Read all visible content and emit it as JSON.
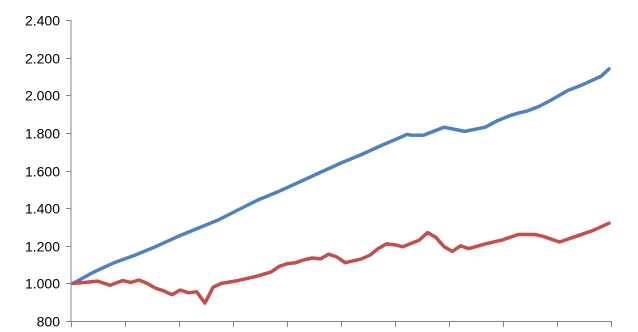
{
  "chart_data": {
    "type": "line",
    "title": "",
    "xlabel": "",
    "ylabel": "",
    "ylim": [
      800,
      2400
    ],
    "yticks": [
      800,
      1000,
      1200,
      1400,
      1600,
      1800,
      2000,
      2200,
      2400
    ],
    "ytick_labels": [
      "800",
      "1.000",
      "1.200",
      "1.400",
      "1.600",
      "1.800",
      "2.000",
      "2.200",
      "2.400"
    ],
    "x_major_tick_count": 10,
    "grid": false,
    "legend": "none",
    "series": [
      {
        "color": "#4f81bd",
        "x": [
          0,
          5,
          10,
          15,
          20,
          25,
          30,
          35,
          40,
          45,
          50,
          55,
          60,
          65,
          70,
          75,
          80,
          81,
          82,
          85,
          90,
          95,
          100,
          103,
          106,
          108,
          110,
          113,
          116,
          120,
          123,
          126,
          128,
          130
        ],
        "values": [
          1000,
          1060,
          1110,
          1150,
          1195,
          1245,
          1290,
          1335,
          1390,
          1445,
          1490,
          1540,
          1590,
          1640,
          1685,
          1735,
          1782,
          1792,
          1788,
          1787,
          1830,
          1808,
          1830,
          1865,
          1892,
          1905,
          1915,
          1940,
          1975,
          2025,
          2050,
          2080,
          2100,
          2140
        ]
      },
      {
        "color": "#c0504d",
        "x": [
          0,
          3,
          6,
          9,
          12,
          14,
          16,
          18,
          20,
          22,
          24,
          26,
          28,
          30,
          32,
          34,
          36,
          40,
          44,
          48,
          50,
          52,
          54,
          56,
          58,
          60,
          62,
          64,
          66,
          70,
          72,
          74,
          76,
          78,
          80,
          84,
          86,
          88,
          90,
          92,
          94,
          96,
          100,
          104,
          108,
          112,
          114,
          116,
          118,
          122,
          126,
          130
        ],
        "values": [
          1000,
          1005,
          1012,
          990,
          1015,
          1005,
          1018,
          1000,
          975,
          960,
          940,
          965,
          950,
          955,
          895,
          980,
          1000,
          1015,
          1035,
          1060,
          1090,
          1105,
          1110,
          1125,
          1135,
          1130,
          1155,
          1140,
          1110,
          1130,
          1150,
          1185,
          1210,
          1205,
          1195,
          1230,
          1270,
          1245,
          1195,
          1170,
          1200,
          1185,
          1210,
          1230,
          1260,
          1260,
          1250,
          1235,
          1220,
          1250,
          1280,
          1320
        ]
      }
    ]
  }
}
